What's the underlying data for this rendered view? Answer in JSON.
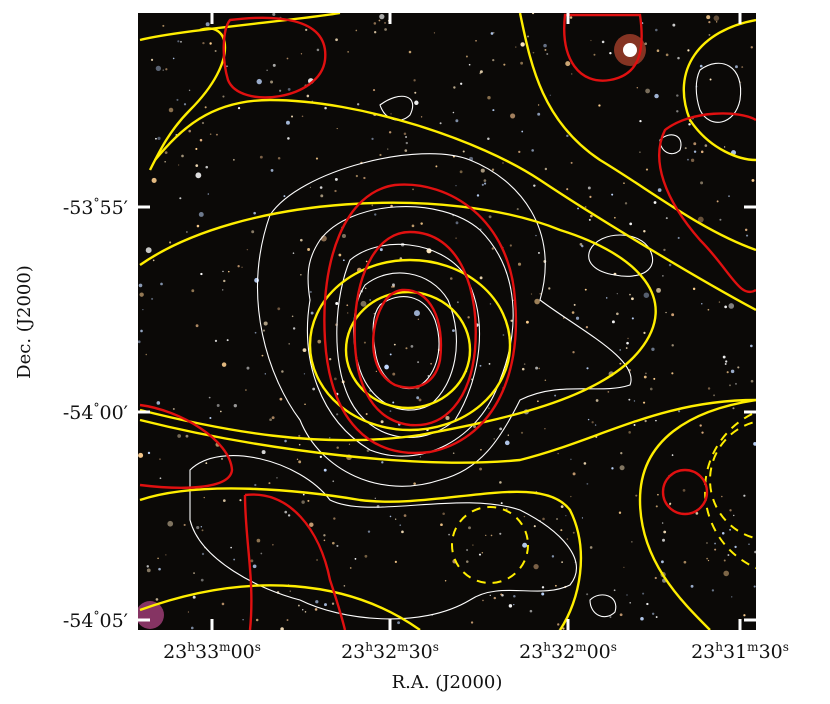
{
  "figure": {
    "x_axis": {
      "label": "R.A. (J2000)",
      "ticks": [
        [
          "23",
          "h",
          "33",
          "m",
          "00",
          "s"
        ],
        [
          "23",
          "h",
          "32",
          "m",
          "30",
          "s"
        ],
        [
          "23",
          "h",
          "32",
          "m",
          "00",
          "s"
        ],
        [
          "23",
          "h",
          "31",
          "m",
          "30",
          "s"
        ]
      ]
    },
    "y_axis": {
      "label": "Dec. (J2000)",
      "ticks": [
        [
          "-53",
          "°",
          "55′"
        ],
        [
          "-54",
          "°",
          "00′"
        ],
        [
          "-54",
          "°",
          "05′"
        ]
      ]
    }
  }
}
